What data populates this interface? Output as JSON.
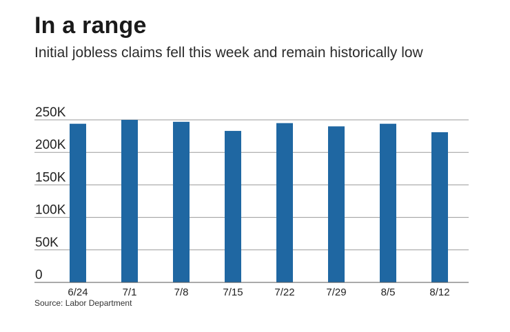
{
  "title": "In a range",
  "subtitle": "Initial jobless claims fell this week and remain historically low",
  "source": "Source: Labor Department",
  "colors": {
    "bar": "#1f67a2",
    "grid": "#9a9a9a",
    "axis": "#555555",
    "text": "#222222"
  },
  "chart_data": {
    "type": "bar",
    "title": "In a range",
    "subtitle": "Initial jobless claims fell this week and remain historically low",
    "xlabel": "",
    "ylabel": "",
    "categories": [
      "6/24",
      "7/1",
      "7/8",
      "7/15",
      "7/22",
      "7/29",
      "8/5",
      "8/12"
    ],
    "values": [
      244000,
      250000,
      247000,
      233000,
      245000,
      240000,
      244000,
      231000
    ],
    "ylim": [
      0,
      250000
    ],
    "yticks": [
      0,
      50000,
      100000,
      150000,
      200000,
      250000
    ],
    "ytick_labels": [
      "0",
      "50K",
      "100K",
      "150K",
      "200K",
      "250K"
    ],
    "grid": true,
    "legend": "none"
  }
}
